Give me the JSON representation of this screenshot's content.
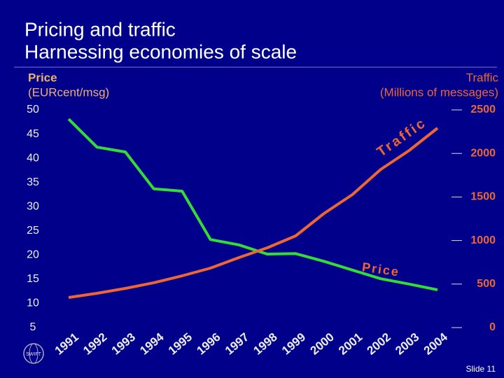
{
  "chart_data": {
    "type": "line",
    "title": "Pricing and traffic",
    "subtitle": "Harnessing economies of scale",
    "ylabel_lines": [
      "Price",
      "(EURcent/msg)"
    ],
    "y2label_lines": [
      "Traffic",
      "(Millions of messages)"
    ],
    "categories": [
      "1991",
      "1992",
      "1993",
      "1994",
      "1995",
      "1996",
      "1997",
      "1998",
      "1999",
      "2000",
      "2001",
      "2002",
      "2003",
      "2004"
    ],
    "series": [
      {
        "name": "Price",
        "color": "#33dd33",
        "values": [
          48.1,
          42.3,
          41.3,
          33.7,
          33.2,
          23.2,
          22.1,
          20.2,
          20.3,
          18.7,
          16.9,
          15.1,
          14.0,
          12.8
        ]
      },
      {
        "name": "Traffic",
        "color": "#ee6633",
        "axis": "y2",
        "values": [
          346,
          394,
          450,
          515,
          595,
          683,
          804,
          916,
          1053,
          1310,
          1527,
          1817,
          2034,
          2291
        ]
      }
    ],
    "ylim": [
      5,
      50
    ],
    "yticks": [
      5,
      10,
      15,
      20,
      25,
      30,
      35,
      40,
      45,
      50
    ],
    "y2lim": [
      0,
      2500
    ],
    "y2ticks": [
      0,
      500,
      1000,
      1500,
      2000,
      2500
    ]
  },
  "logo": "SWIFT",
  "footer": "Slide 11"
}
